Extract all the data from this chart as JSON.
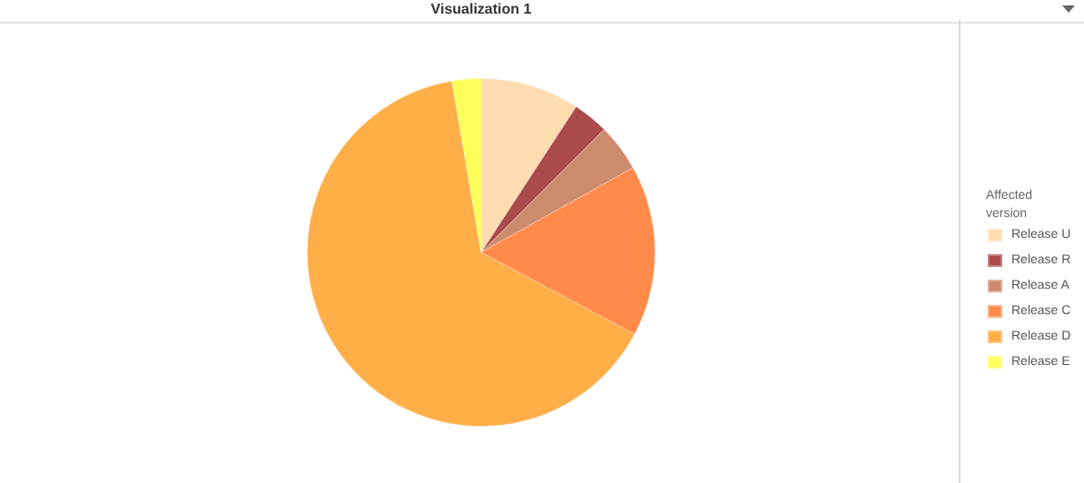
{
  "chart_data": {
    "type": "pie",
    "title": "Visualization 1",
    "legend_title": "Affected version",
    "legend": "right",
    "categories": [
      "Release U",
      "Release R",
      "Release A",
      "Release C",
      "Release D",
      "Release E"
    ],
    "values": [
      9.2,
      3.3,
      4.4,
      15.9,
      64.5,
      2.7
    ],
    "colors": [
      "#fddcb0",
      "#ab4a4a",
      "#cd8b6d",
      "#ff8a4a",
      "#ffae48",
      "#ffff5a"
    ]
  }
}
